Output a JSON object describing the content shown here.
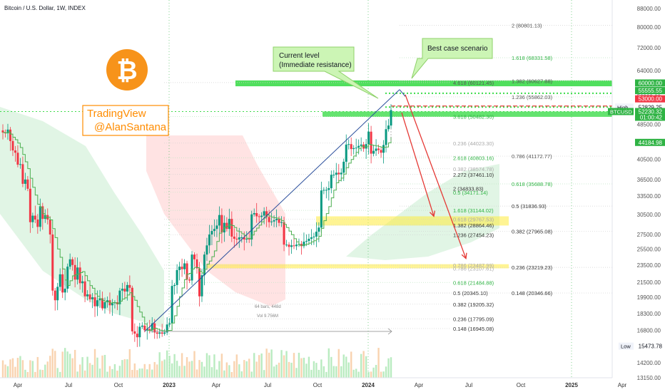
{
  "header": {
    "title": "Bitcoin / U.S. Dollar, 1W, INDEX"
  },
  "brand": {
    "line1": "TradingView",
    "line2": "@AlanSantana",
    "logo_glyph": "₿",
    "logo_color": "#f7931a",
    "accent": "#ff8c00"
  },
  "callouts": {
    "current": {
      "line1": "Current level",
      "line2": "(Immediate resistance)"
    },
    "best": {
      "text": "Best case scenario"
    }
  },
  "measure": {
    "line1": "64 bars, 448d",
    "line2": "Vol 9.756M"
  },
  "colors": {
    "up": "#089981",
    "down": "#f23645",
    "fib_green": "#2fb344",
    "zone_green": "#3ddc4b",
    "zone_yellow": "#ffeb3b",
    "target_red": "#e53935",
    "trend_blue": "#2a4e9b"
  },
  "fib_levels": [
    {
      "label": "2 (80801.13)",
      "price": 80801.13,
      "color": "#555555",
      "col": 1
    },
    {
      "label": "1.618 (68331.58)",
      "price": 68331.58,
      "color": "#2fb344",
      "col": 1
    },
    {
      "label": "4.618 (60121.45)",
      "price": 60121.45,
      "color": "#555555",
      "col": 0
    },
    {
      "label": "1.382 (60627.88)",
      "price": 60627.88,
      "color": "#555555",
      "col": 1
    },
    {
      "label": "1.236 (55862.03)",
      "price": 55862.03,
      "color": "#555555",
      "col": 1
    },
    {
      "label": "3.618 (50482.30)",
      "price": 50482.3,
      "color": "#2fb344",
      "col": 0
    },
    {
      "label": "0.236 (44023.30)",
      "price": 44023.3,
      "color": "#aaaaaa",
      "col": 0
    },
    {
      "label": "2.618 (40803.16)",
      "price": 40803.16,
      "color": "#2fb344",
      "col": 0
    },
    {
      "label": "0.786 (41172.77)",
      "price": 41172.77,
      "color": "#555555",
      "col": 1
    },
    {
      "label": "0.382 (38574.78)",
      "price": 38574.78,
      "color": "#aaaaaa",
      "col": 0
    },
    {
      "label": "2.272 (37461.10)",
      "price": 37461.1,
      "color": "#333333",
      "col": 0
    },
    {
      "label": "0.618 (35688.78)",
      "price": 35688.78,
      "color": "#2fb344",
      "col": 1
    },
    {
      "label": "2 (34833.83)",
      "price": 34833.83,
      "color": "#333333",
      "col": 0
    },
    {
      "label": "0.5 (34171.14)",
      "price": 34171.14,
      "color": "#2fb344",
      "col": 0
    },
    {
      "label": "0.5 (31836.93)",
      "price": 31836.93,
      "color": "#333333",
      "col": 1
    },
    {
      "label": "1.618 (31144.02)",
      "price": 31144.02,
      "color": "#2fb344",
      "col": 0
    },
    {
      "label": "0.618 (29767.53)",
      "price": 29767.53,
      "color": "#aaaaaa",
      "col": 0
    },
    {
      "label": "1.382 (28864.46)",
      "price": 28864.46,
      "color": "#333333",
      "col": 0
    },
    {
      "label": "0.382 (27965.08)",
      "price": 27965.08,
      "color": "#333333",
      "col": 1
    },
    {
      "label": "1.236 (27454.23)",
      "price": 27454.23,
      "color": "#333333",
      "col": 0
    },
    {
      "label": "0.786 (23487.99)",
      "price": 23487.99,
      "color": "#aaaaaa",
      "col": 0
    },
    {
      "label": "0.786 (23107.61)",
      "price": 23107.61,
      "color": "#aaaaaa",
      "col": 0
    },
    {
      "label": "0.236 (23219.23)",
      "price": 23219.23,
      "color": "#333333",
      "col": 1
    },
    {
      "label": "0.618 (21484.88)",
      "price": 21484.88,
      "color": "#2fb344",
      "col": 0
    },
    {
      "label": "0.5 (20345.10)",
      "price": 20345.1,
      "color": "#333333",
      "col": 0
    },
    {
      "label": "0.148 (20346.66)",
      "price": 20346.66,
      "color": "#333333",
      "col": 1
    },
    {
      "label": "0.382 (19205.32)",
      "price": 19205.32,
      "color": "#333333",
      "col": 0
    },
    {
      "label": "0.236 (17795.09)",
      "price": 17795.09,
      "color": "#333333",
      "col": 0
    },
    {
      "label": "0.148 (16945.08)",
      "price": 16945.08,
      "color": "#333333",
      "col": 0
    }
  ],
  "price_tags": [
    {
      "text": "60000.00",
      "price": 60000,
      "bg": "#2fb344",
      "fg": "#ffffff"
    },
    {
      "text": "55555.55",
      "price": 57700,
      "bg": "#2fb344",
      "fg": "#ffffff"
    },
    {
      "text": "53000.00",
      "price": 55300,
      "bg": "#f23645",
      "fg": "#ffffff"
    },
    {
      "text": "52829.25",
      "price": 53000,
      "bg": "#ffffff",
      "fg": "#131722",
      "prefix": "High"
    },
    {
      "text": "52230.32",
      "price": 51800,
      "bg": "#2fb344",
      "fg": "#ffffff",
      "prefix": "BTCUSD",
      "sub": "01:00:42"
    },
    {
      "text": "44184.98",
      "price": 44184.98,
      "bg": "#2fb344",
      "fg": "#ffffff"
    },
    {
      "text": "15473.78",
      "price": 15473.78,
      "bg": "#ffffff",
      "fg": "#131722",
      "prefix": "Low"
    }
  ],
  "chart_data": {
    "type": "candlestick",
    "title": "Bitcoin / U.S. Dollar, 1W, INDEX",
    "y_scale": "log",
    "ylim": [
      13150,
      92000
    ],
    "y_ticks": [
      "88000.00",
      "80000.00",
      "72000.00",
      "64000.00",
      "56000.00",
      "48500.00",
      "40500.00",
      "36500.00",
      "33500.00",
      "30500.00",
      "27500.00",
      "25500.00",
      "23500.00",
      "21500.00",
      "19900.00",
      "18300.00",
      "16800.00",
      "14200.00",
      "13150.00"
    ],
    "x_ticks": [
      "Apr",
      "Jul",
      "Oct",
      "2023",
      "Apr",
      "Jul",
      "Oct",
      "2024",
      "Apr",
      "Jul",
      "Oct",
      "2025",
      "Apr"
    ],
    "series": [
      {
        "name": "BTCUSD",
        "closes": [
          46500,
          46300,
          47200,
          44500,
          42400,
          41900,
          39400,
          39500,
          35700,
          36500,
          34800,
          29300,
          30300,
          29700,
          28600,
          31800,
          29800,
          30400,
          29700,
          27500,
          20600,
          19600,
          21000,
          22400,
          20400,
          20800,
          23300,
          24200,
          23500,
          21800,
          23200,
          21400,
          21600,
          20000,
          20200,
          19700,
          19900,
          19000,
          19600,
          19800,
          18800,
          19400,
          19600,
          19100,
          19300,
          19400,
          19200,
          20600,
          20800,
          20500,
          21200,
          20900,
          16700,
          16500,
          16200,
          17100,
          17200,
          16800,
          16900,
          16800,
          17400,
          16600,
          16500,
          16600,
          16500,
          16600,
          17300,
          17400,
          21100,
          21200,
          22900,
          23300,
          23000,
          23700,
          21800,
          21700,
          24800,
          24200,
          23100,
          20000,
          22300,
          24800,
          26000,
          27500,
          28000,
          28300,
          28800,
          30400,
          27800,
          29200,
          28300,
          29800,
          27200,
          26900,
          26800,
          27100,
          27100,
          26800,
          26900,
          26800,
          30500,
          30700,
          30200,
          30100,
          30300,
          31000,
          30100,
          29300,
          29400,
          29600,
          29800,
          29200,
          29300,
          26100,
          26100,
          25800,
          26000,
          25900,
          26100,
          26200,
          25900,
          26500,
          26600,
          26900,
          27100,
          27200,
          27900,
          28500,
          34500,
          34600,
          34600,
          34900,
          37400,
          37400,
          37800,
          37500,
          37800,
          40000,
          43700,
          43800,
          42700,
          42900,
          43000,
          43400,
          43700,
          42800,
          43800,
          46700,
          41700,
          42300,
          42800,
          42500,
          41900,
          43600,
          47300,
          48200,
          52200
        ]
      },
      {
        "name": "moving-average-green",
        "note": "stepped trend line"
      }
    ],
    "annotations": {
      "current_level": {
        "price": 52000
      },
      "best_case": {
        "price": 60000
      },
      "fib_zone_upper": [
        59000,
        60800
      ],
      "fib_zone_current": [
        50400,
        51800
      ],
      "support_zone_1": [
        28800,
        30200
      ],
      "support_zone_2": [
        23100,
        23600
      ]
    }
  }
}
